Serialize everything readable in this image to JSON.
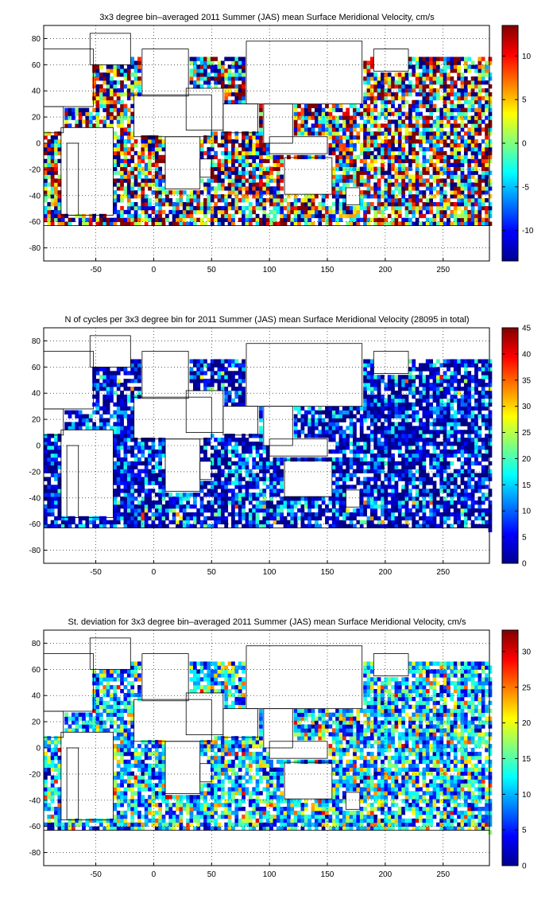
{
  "figure": {
    "panels": [
      {
        "title": "3x3 degree bin–averaged 2011 Summer (JAS) mean Surface Meridional Velocity, cm/s",
        "colorbar_ticks": [
          "-10",
          "-5",
          "0",
          "5",
          "10"
        ]
      },
      {
        "title": "N of cycles per 3x3 degree bin for 2011 Summer (JAS) mean Surface Meridional Velocity (28095 in total)",
        "colorbar_ticks": [
          "0",
          "5",
          "10",
          "15",
          "20",
          "25",
          "30",
          "35",
          "40",
          "45"
        ]
      },
      {
        "title": "St. deviation for 3x3 degree bin–averaged 2011 Summer (JAS) mean Surface Meridional Velocity, cm/s",
        "colorbar_ticks": [
          "0",
          "5",
          "10",
          "15",
          "20",
          "25",
          "30"
        ]
      }
    ]
  },
  "chart_data": [
    {
      "type": "heatmap",
      "title": "3x3 degree bin–averaged 2011 Summer (JAS) mean Surface Meridional Velocity, cm/s",
      "xlabel": "",
      "ylabel": "",
      "xlim": [
        -95,
        290
      ],
      "ylim": [
        -90,
        90
      ],
      "x_ticks": [
        -50,
        0,
        50,
        100,
        150,
        200,
        250
      ],
      "y_ticks": [
        -80,
        -60,
        -40,
        -20,
        0,
        20,
        40,
        60,
        80
      ],
      "bin_size_deg": 3,
      "colormap": "jet",
      "color_range": [
        -13.5,
        13.5
      ],
      "colorbar_ticks": [
        -10,
        -5,
        0,
        5,
        10
      ],
      "grid": true,
      "coastlines": true,
      "colorbar_position": "right"
    },
    {
      "type": "heatmap",
      "title": "N of cycles per 3x3 degree bin for 2011 Summer (JAS) mean Surface Meridional Velocity (28095 in total)",
      "xlabel": "",
      "ylabel": "",
      "xlim": [
        -95,
        290
      ],
      "ylim": [
        -90,
        90
      ],
      "x_ticks": [
        -50,
        0,
        50,
        100,
        150,
        200,
        250
      ],
      "y_ticks": [
        -80,
        -60,
        -40,
        -20,
        0,
        20,
        40,
        60,
        80
      ],
      "bin_size_deg": 3,
      "total_cycles": 28095,
      "colormap": "jet",
      "color_range": [
        0,
        45
      ],
      "colorbar_ticks": [
        0,
        5,
        10,
        15,
        20,
        25,
        30,
        35,
        40,
        45
      ],
      "grid": true,
      "coastlines": true,
      "colorbar_position": "right"
    },
    {
      "type": "heatmap",
      "title": "St. deviation for 3x3 degree bin–averaged 2011 Summer (JAS) mean Surface Meridional Velocity, cm/s",
      "xlabel": "",
      "ylabel": "",
      "xlim": [
        -95,
        290
      ],
      "ylim": [
        -90,
        90
      ],
      "x_ticks": [
        -50,
        0,
        50,
        100,
        150,
        200,
        250
      ],
      "y_ticks": [
        -80,
        -60,
        -40,
        -20,
        0,
        20,
        40,
        60,
        80
      ],
      "bin_size_deg": 3,
      "colormap": "jet",
      "color_range": [
        0,
        33
      ],
      "colorbar_ticks": [
        0,
        5,
        10,
        15,
        20,
        25,
        30
      ],
      "grid": true,
      "coastlines": true,
      "colorbar_position": "right"
    }
  ]
}
